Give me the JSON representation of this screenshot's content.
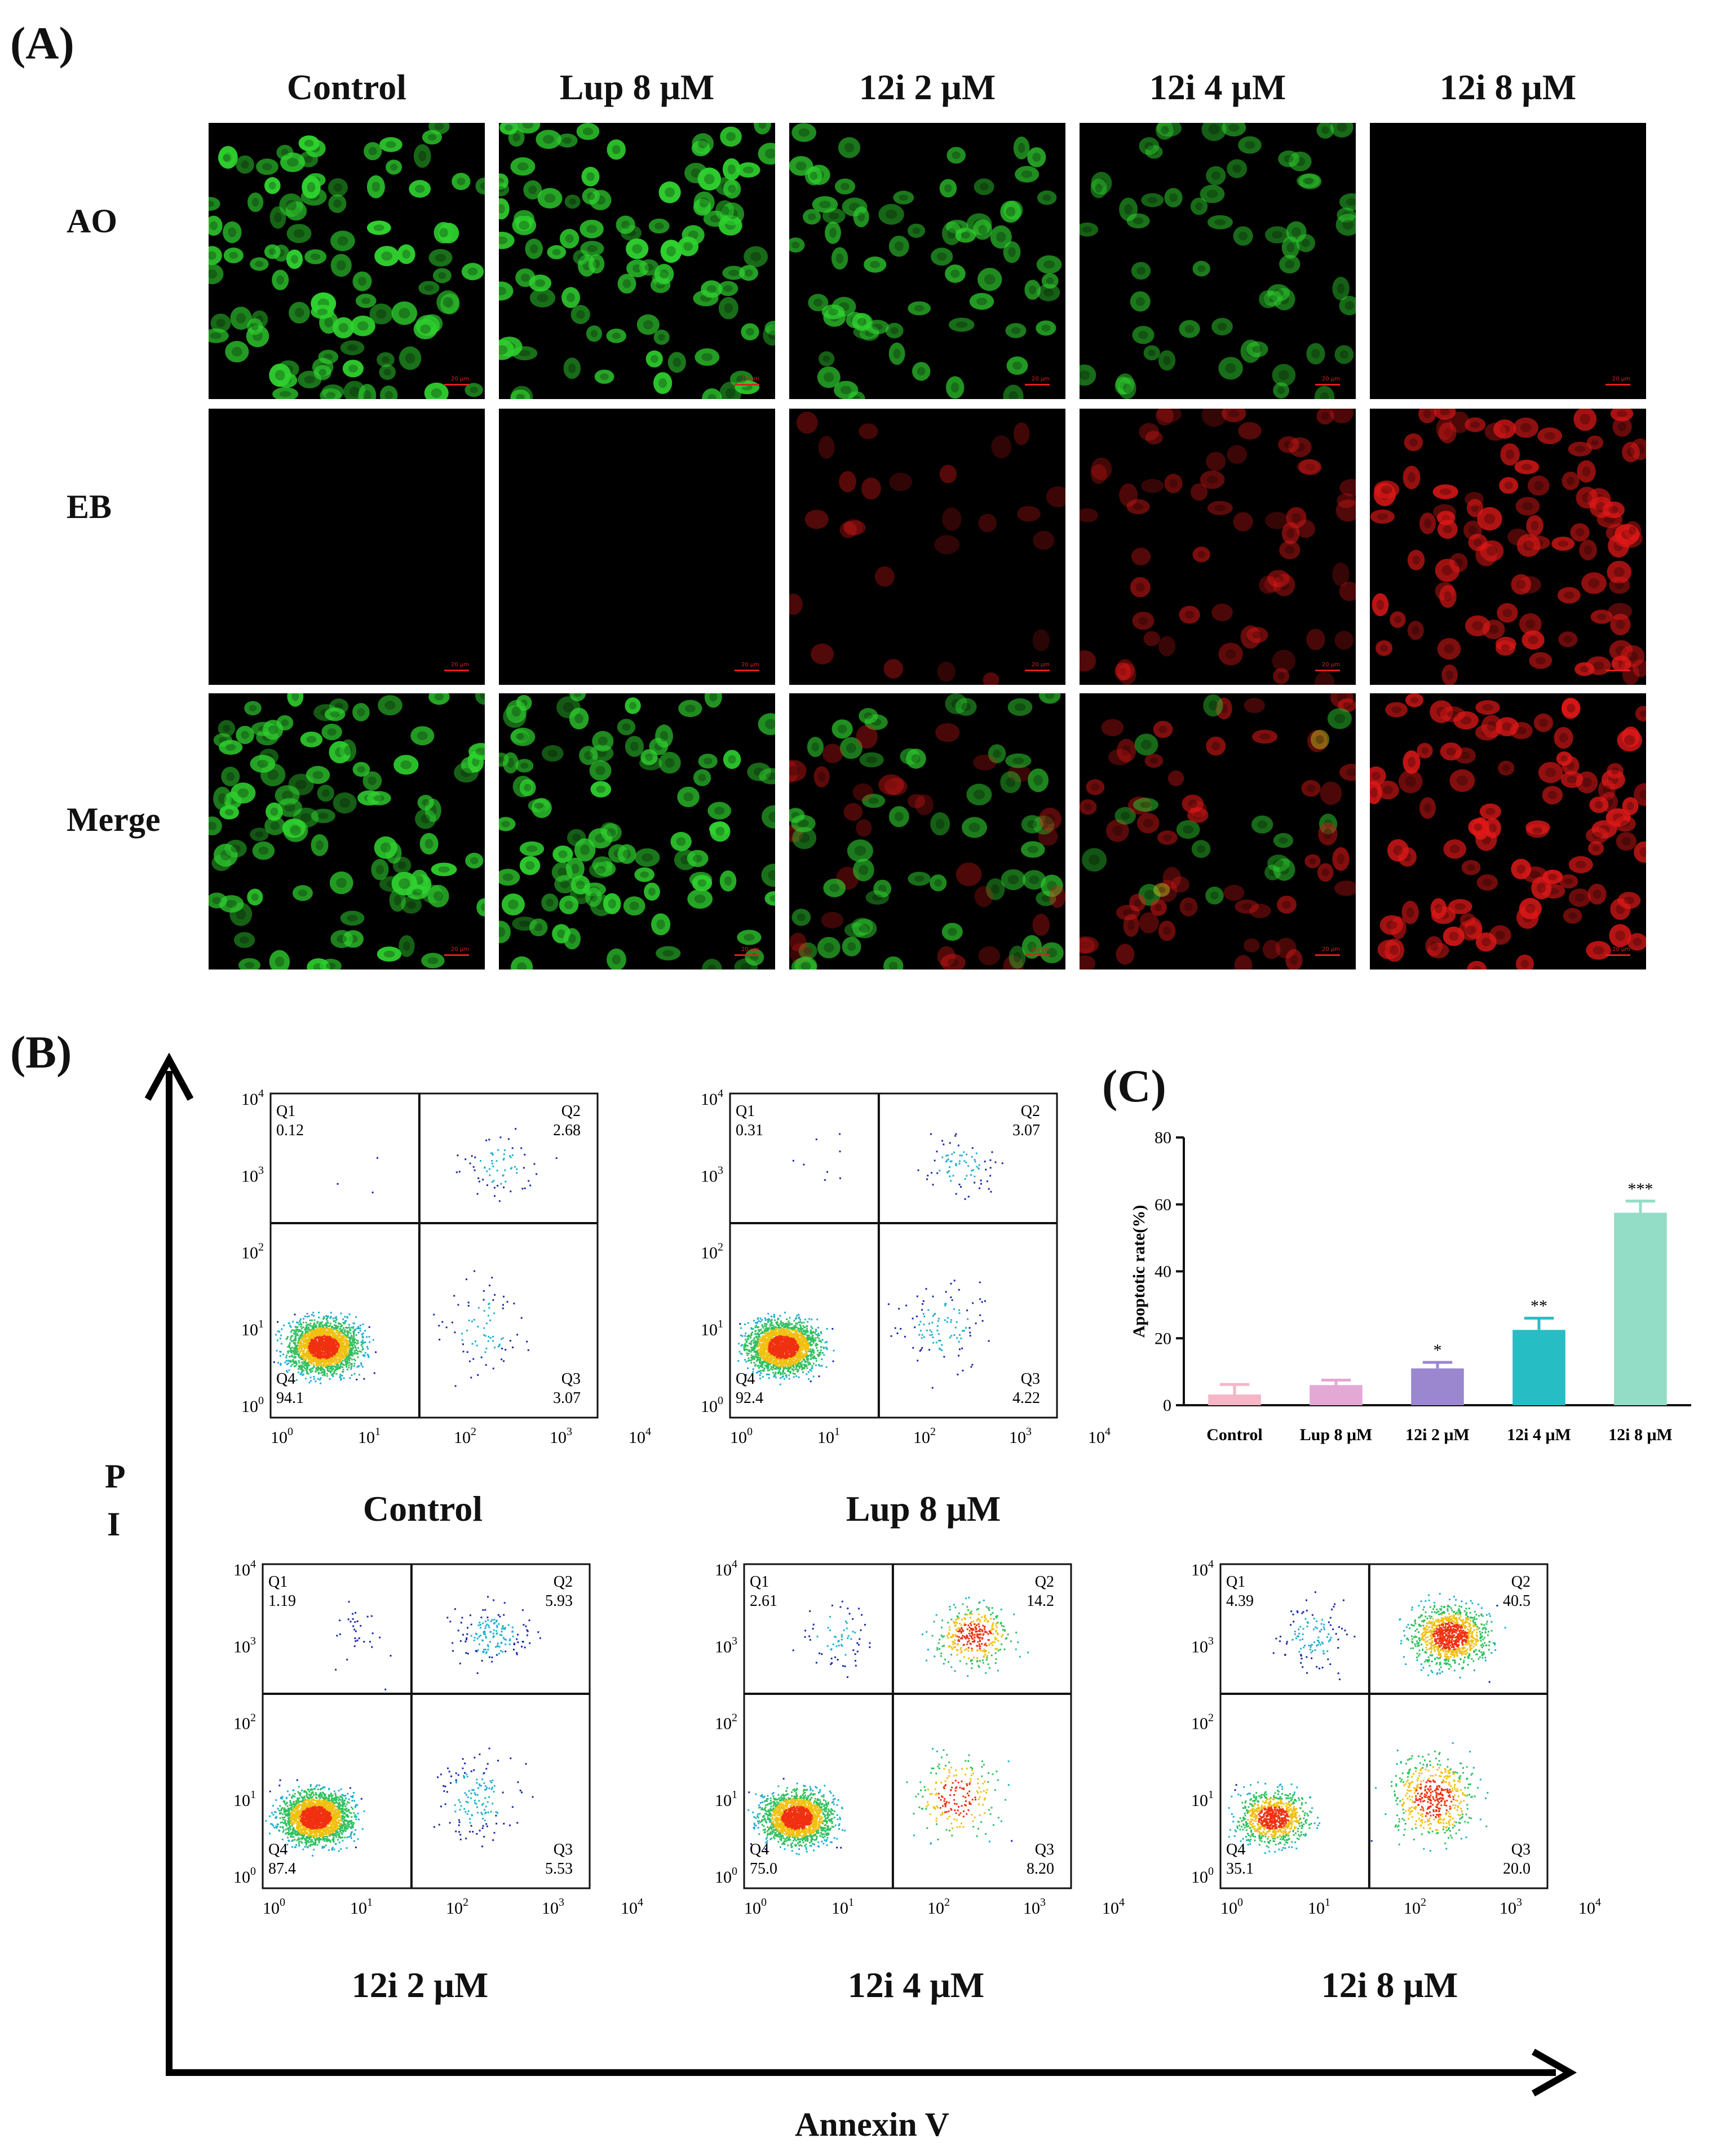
{
  "panel_a": {
    "label": "(A)",
    "columns": [
      "Control",
      "Lup 8 μM",
      "12i 2 μM",
      "12i 4 μM",
      "12i 8 μM"
    ],
    "rows": [
      "AO",
      "EB",
      "Merge"
    ],
    "scale_text": "20 μm",
    "image_desc": {
      "AO": [
        1.0,
        1.0,
        0.55,
        0.25,
        0.0
      ],
      "EB": [
        0.0,
        0.0,
        0.25,
        0.5,
        1.0
      ]
    }
  },
  "panel_b": {
    "label": "(B)",
    "y_axis_label_1": "P",
    "y_axis_label_2": "I",
    "x_axis_label": "Annexin V",
    "plots": [
      {
        "title": "Control",
        "Q1": "0.12",
        "Q2": "2.68",
        "Q3": "3.07",
        "Q4": "94.1"
      },
      {
        "title": "Lup 8 μM",
        "Q1": "0.31",
        "Q2": "3.07",
        "Q3": "4.22",
        "Q4": "92.4"
      },
      {
        "title": "12i 2 μM",
        "Q1": "1.19",
        "Q2": "5.93",
        "Q3": "5.53",
        "Q4": "87.4"
      },
      {
        "title": "12i 4 μM",
        "Q1": "2.61",
        "Q2": "14.2",
        "Q3": "8.20",
        "Q4": "75.0"
      },
      {
        "title": "12i 8 μM",
        "Q1": "4.39",
        "Q2": "40.5",
        "Q3": "20.0",
        "Q4": "35.1"
      }
    ],
    "quadrant_names": [
      "Q1",
      "Q2",
      "Q3",
      "Q4"
    ],
    "tick_labels": [
      "10",
      "10",
      "10",
      "10",
      "10"
    ],
    "tick_exponents": [
      "0",
      "1",
      "2",
      "3",
      "4"
    ]
  },
  "panel_c": {
    "label": "(C)"
  },
  "chart_data": {
    "type": "bar",
    "title": "",
    "xlabel": "",
    "ylabel": "Apoptotic rate(%)",
    "categories": [
      "Control",
      "Lup 8 μM",
      "12i 2 μM",
      "12i 4 μM",
      "12i 8 μM"
    ],
    "values": [
      3.2,
      6.0,
      11.0,
      22.5,
      57.5
    ],
    "errors": [
      3.0,
      1.5,
      1.8,
      3.5,
      3.5
    ],
    "significance": [
      "",
      "",
      "*",
      "**",
      "***"
    ],
    "ylim": [
      0,
      80
    ],
    "yticks": [
      "0",
      "20",
      "40",
      "60",
      "80"
    ],
    "colors": [
      "#f5b6c6",
      "#e4a8d6",
      "#9a87cf",
      "#27bdc5",
      "#93dcc6"
    ],
    "grid": false
  }
}
